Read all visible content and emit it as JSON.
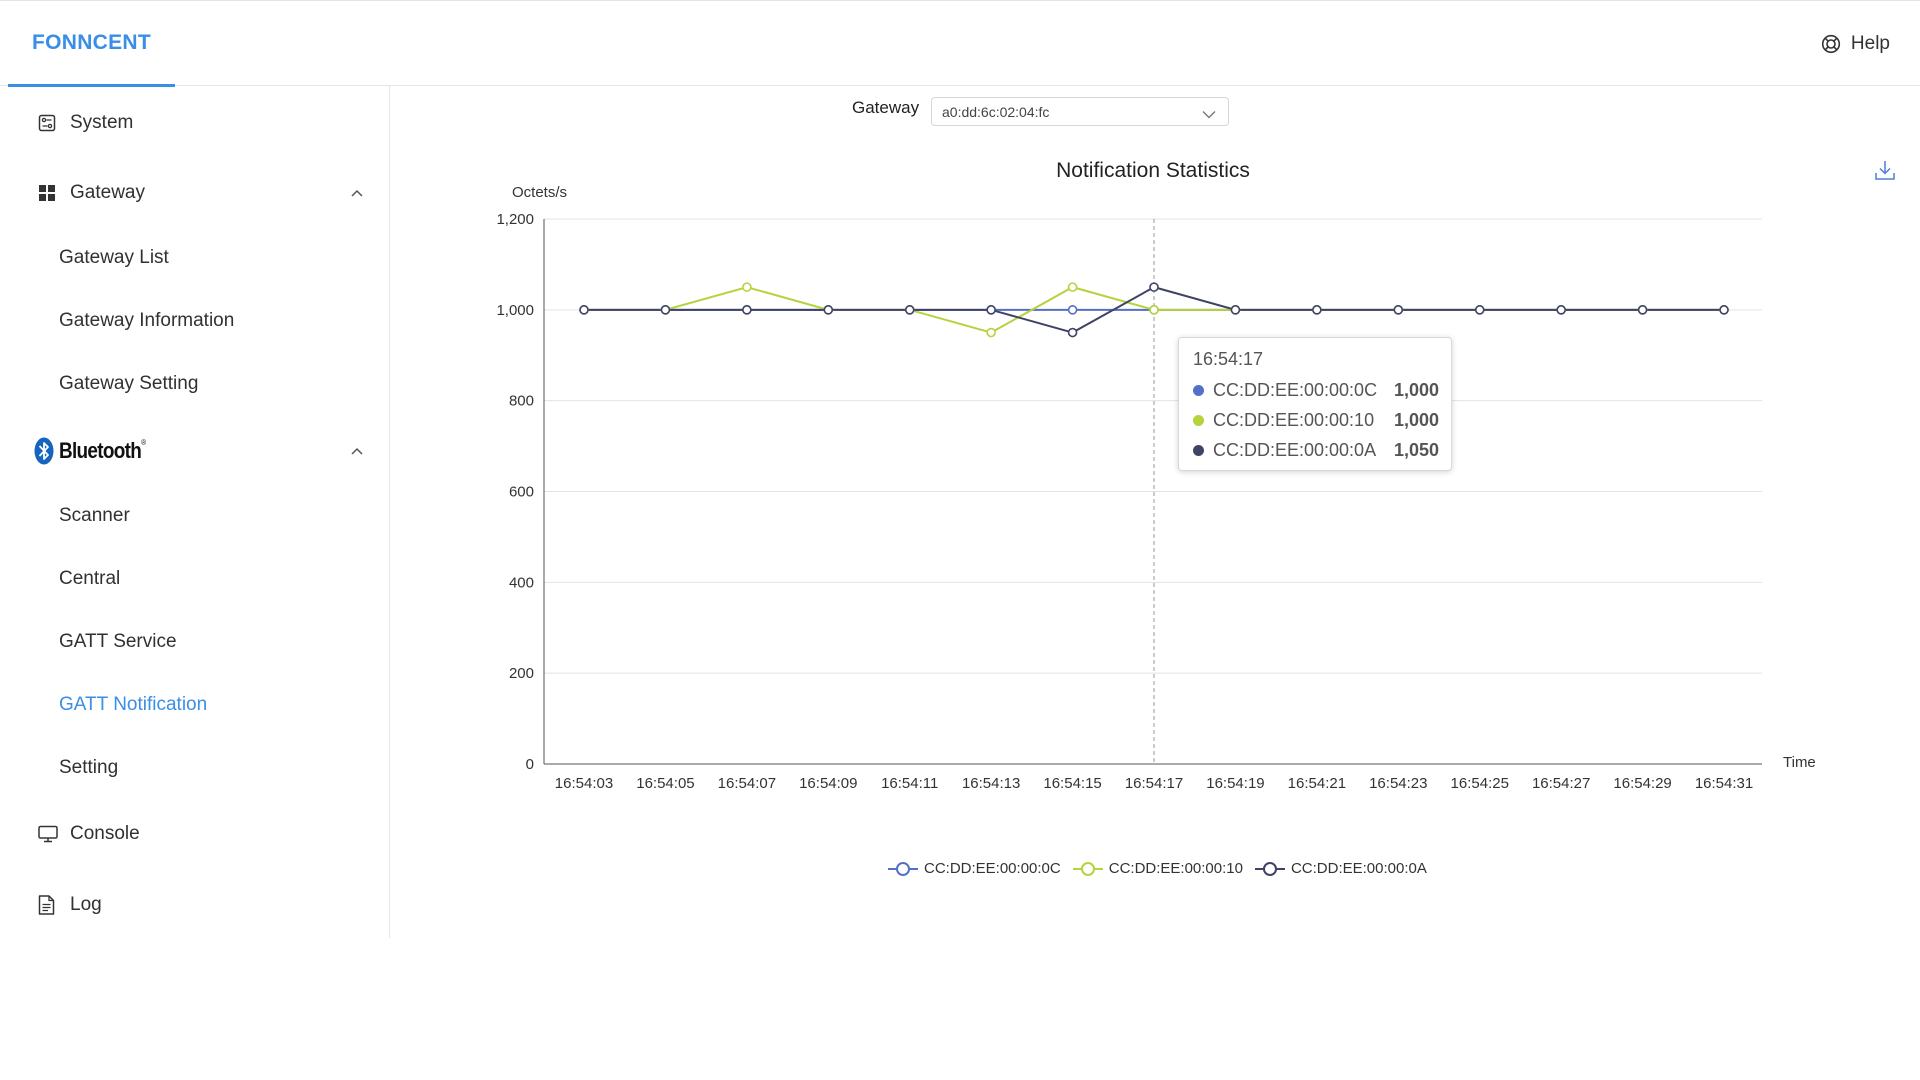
{
  "header": {
    "brand": "FONNCENT",
    "help_label": "Help"
  },
  "sidebar": {
    "system": "System",
    "gateway": {
      "label": "Gateway",
      "items": [
        "Gateway List",
        "Gateway Information",
        "Gateway Setting"
      ]
    },
    "bluetooth": {
      "label": "Bluetooth",
      "items": [
        "Scanner",
        "Central",
        "GATT Service",
        "GATT Notification",
        "Setting"
      ],
      "active": "GATT Notification"
    },
    "console": "Console",
    "log": "Log"
  },
  "filter": {
    "gateway_label": "Gateway",
    "gateway_value": "a0:dd:6c:02:04:fc"
  },
  "colors": {
    "accent": "#3a8ee6",
    "series_0c": "#5470c6",
    "series_10": "#b5d33c",
    "series_0a": "#3f4366"
  },
  "chart_data": {
    "type": "line",
    "title": "Notification Statistics",
    "ylabel": "Octets/s",
    "xlabel": "Time",
    "ylim": [
      0,
      1200
    ],
    "yticks": [
      "0",
      "200",
      "400",
      "600",
      "800",
      "1,000",
      "1,200"
    ],
    "ytick_values": [
      0,
      200,
      400,
      600,
      800,
      1000,
      1200
    ],
    "x": [
      "16:54:03",
      "16:54:05",
      "16:54:07",
      "16:54:09",
      "16:54:11",
      "16:54:13",
      "16:54:15",
      "16:54:17",
      "16:54:19",
      "16:54:21",
      "16:54:23",
      "16:54:25",
      "16:54:27",
      "16:54:29",
      "16:54:31"
    ],
    "grid": true,
    "legend": "bottom",
    "series": [
      {
        "name": "CC:DD:EE:00:00:0C",
        "values": [
          1000,
          1000,
          1000,
          1000,
          1000,
          1000,
          1000,
          1000,
          1000,
          1000,
          1000,
          1000,
          1000,
          1000,
          1000
        ]
      },
      {
        "name": "CC:DD:EE:00:00:10",
        "values": [
          1000,
          1000,
          1050,
          1000,
          1000,
          950,
          1050,
          1000,
          1000,
          1000,
          1000,
          1000,
          1000,
          1000,
          1000
        ]
      },
      {
        "name": "CC:DD:EE:00:00:0A",
        "values": [
          1000,
          1000,
          1000,
          1000,
          1000,
          1000,
          950,
          1050,
          1000,
          1000,
          1000,
          1000,
          1000,
          1000,
          1000
        ]
      }
    ],
    "tooltip": {
      "time": "16:54:17",
      "rows": [
        {
          "name": "CC:DD:EE:00:00:0C",
          "value": "1,000"
        },
        {
          "name": "CC:DD:EE:00:00:10",
          "value": "1,000"
        },
        {
          "name": "CC:DD:EE:00:00:0A",
          "value": "1,050"
        }
      ]
    }
  }
}
